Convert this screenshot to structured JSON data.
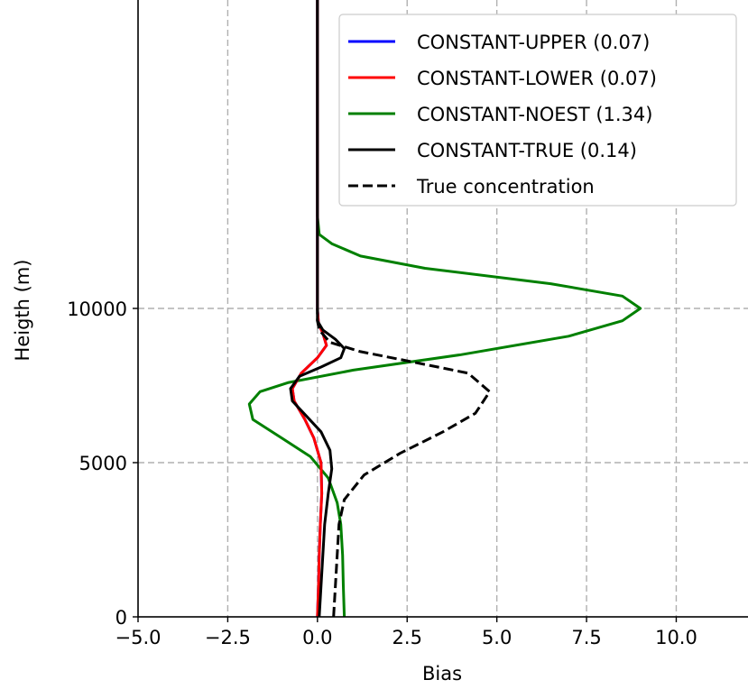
{
  "chart_data": {
    "type": "line",
    "title": "",
    "xlabel": "Bias",
    "ylabel": "Heigth (m)",
    "xlim": [
      -5.0,
      12.0
    ],
    "ylim": [
      0,
      20000
    ],
    "grid": true,
    "legend_position": "top-right",
    "x_ticks": [
      "−5.0",
      "−2.5",
      "0.0",
      "2.5",
      "5.0",
      "7.5",
      "10.0"
    ],
    "x_tick_values": [
      -5.0,
      -2.5,
      0.0,
      2.5,
      5.0,
      7.5,
      10.0
    ],
    "y_ticks": [
      "0",
      "5000",
      "10000"
    ],
    "y_tick_values": [
      0,
      5000,
      10000
    ],
    "series": [
      {
        "name": "CONSTANT-UPPER (0.07)",
        "color": "#0000ff",
        "dash": "solid",
        "points": [
          [
            0.0,
            0
          ],
          [
            0.03,
            1000
          ],
          [
            0.05,
            2000
          ],
          [
            0.08,
            3000
          ],
          [
            0.12,
            4000
          ],
          [
            0.1,
            5000
          ],
          [
            -0.1,
            5800
          ],
          [
            -0.35,
            6400
          ],
          [
            -0.65,
            7000
          ],
          [
            -0.7,
            7400
          ],
          [
            -0.45,
            7900
          ],
          [
            0.0,
            8400
          ],
          [
            0.25,
            8800
          ],
          [
            0.15,
            9200
          ],
          [
            0.03,
            9500
          ],
          [
            0.0,
            10000
          ],
          [
            0.0,
            15000
          ],
          [
            0.0,
            20000
          ]
        ]
      },
      {
        "name": "CONSTANT-LOWER (0.07)",
        "color": "#ff0000",
        "dash": "solid",
        "points": [
          [
            0.0,
            0
          ],
          [
            0.03,
            1000
          ],
          [
            0.05,
            2000
          ],
          [
            0.08,
            3000
          ],
          [
            0.12,
            4000
          ],
          [
            0.1,
            5000
          ],
          [
            -0.1,
            5800
          ],
          [
            -0.35,
            6400
          ],
          [
            -0.65,
            7000
          ],
          [
            -0.7,
            7400
          ],
          [
            -0.45,
            7900
          ],
          [
            0.0,
            8400
          ],
          [
            0.25,
            8800
          ],
          [
            0.15,
            9200
          ],
          [
            0.03,
            9500
          ],
          [
            0.0,
            10000
          ],
          [
            0.0,
            15000
          ],
          [
            0.0,
            20000
          ]
        ]
      },
      {
        "name": "CONSTANT-NOEST (1.34)",
        "color": "#008000",
        "dash": "solid",
        "points": [
          [
            0.75,
            0
          ],
          [
            0.72,
            1000
          ],
          [
            0.7,
            2000
          ],
          [
            0.65,
            3000
          ],
          [
            0.55,
            3700
          ],
          [
            0.3,
            4500
          ],
          [
            -0.2,
            5200
          ],
          [
            -1.0,
            5800
          ],
          [
            -1.8,
            6400
          ],
          [
            -1.9,
            6900
          ],
          [
            -1.6,
            7300
          ],
          [
            -0.8,
            7600
          ],
          [
            1.0,
            8000
          ],
          [
            4.0,
            8500
          ],
          [
            7.0,
            9100
          ],
          [
            8.5,
            9600
          ],
          [
            9.0,
            10000
          ],
          [
            8.5,
            10400
          ],
          [
            6.5,
            10800
          ],
          [
            3.0,
            11300
          ],
          [
            1.2,
            11700
          ],
          [
            0.4,
            12100
          ],
          [
            0.05,
            12400
          ],
          [
            0.0,
            13000
          ],
          [
            0.0,
            20000
          ]
        ]
      },
      {
        "name": "CONSTANT-TRUE (0.14)",
        "color": "#000000",
        "dash": "solid",
        "points": [
          [
            0.05,
            0
          ],
          [
            0.1,
            1000
          ],
          [
            0.15,
            2000
          ],
          [
            0.2,
            3000
          ],
          [
            0.3,
            4000
          ],
          [
            0.4,
            4800
          ],
          [
            0.35,
            5400
          ],
          [
            0.1,
            6000
          ],
          [
            -0.3,
            6500
          ],
          [
            -0.7,
            7000
          ],
          [
            -0.75,
            7400
          ],
          [
            -0.5,
            7800
          ],
          [
            0.1,
            8100
          ],
          [
            0.65,
            8400
          ],
          [
            0.75,
            8700
          ],
          [
            0.5,
            9000
          ],
          [
            0.15,
            9300
          ],
          [
            0.0,
            9600
          ],
          [
            0.0,
            10000
          ],
          [
            0.0,
            20000
          ]
        ]
      },
      {
        "name": "True concentration",
        "color": "#000000",
        "dash": "dashed",
        "points": [
          [
            0.45,
            0
          ],
          [
            0.5,
            1000
          ],
          [
            0.55,
            2000
          ],
          [
            0.6,
            3000
          ],
          [
            0.75,
            3800
          ],
          [
            1.3,
            4600
          ],
          [
            2.3,
            5300
          ],
          [
            3.5,
            6000
          ],
          [
            4.4,
            6600
          ],
          [
            4.8,
            7300
          ],
          [
            4.2,
            7900
          ],
          [
            2.5,
            8300
          ],
          [
            1.2,
            8600
          ],
          [
            0.35,
            8900
          ],
          [
            0.05,
            9300
          ],
          [
            0.0,
            9600
          ],
          [
            0.0,
            10000
          ]
        ]
      }
    ]
  }
}
